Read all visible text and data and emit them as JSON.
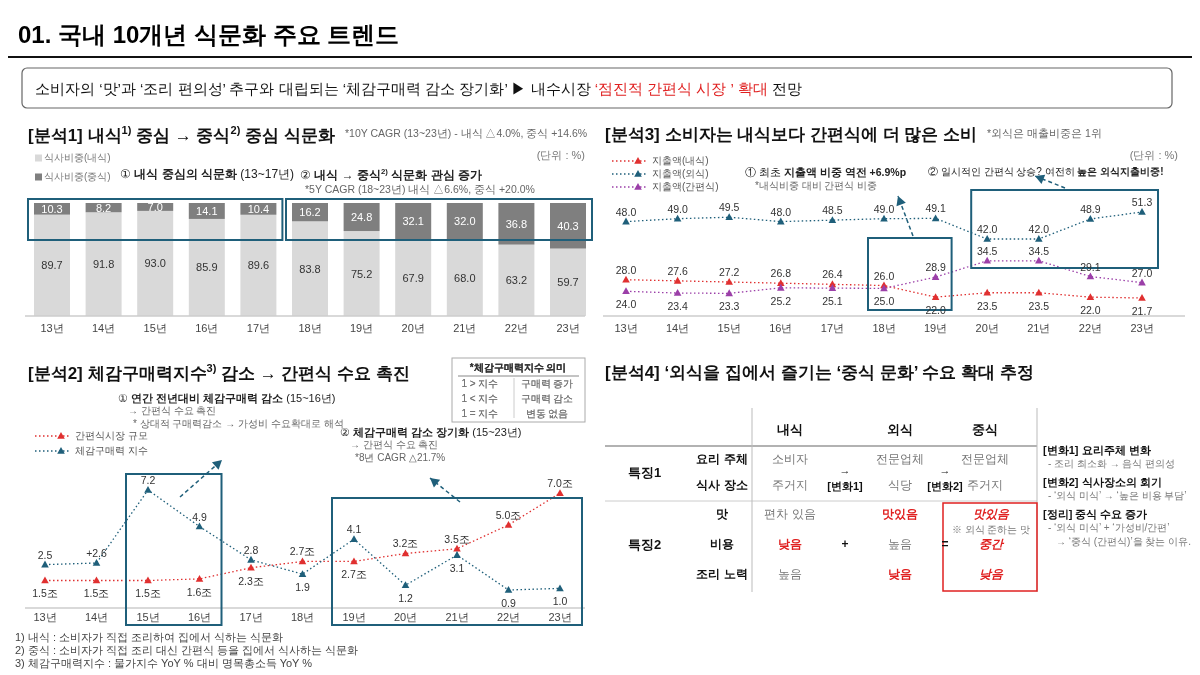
{
  "chart_data": [
    {
      "type": "other",
      "title": "01. 국내 10개년 식문화  주요 트렌드",
      "annotations": [
        "소비자의 ‘맛’과 ‘조리 편의성’ 추구와 대립되는 ‘체감구매력 감소 장기화’  ▶ 내수시장",
        "‘점진적 간편식 시장 ’ 확대",
        "전망",
        "1) 내식  :  소비자가 직접 조리하여 집에서 식하는 식문화",
        "2) 중식  :  소비자가 직접 조리 대신 간편식 등을 집에서 식사하는 식문화",
        "3) 체감구매력지수 : 물가지수 YoY % 대비 명목총소득 YoY %"
      ]
    },
    {
      "type": "bar",
      "stacked": true,
      "title": "[분석1] 내식$^{1)}$ 중심 → 중식$^{2)}$ 중심 식문화",
      "subtitle": "*10Y CAGR (13~23년) - 내식 △4.0%, 중식 +14.6%",
      "categories": [
        "13년",
        "14년",
        "15년",
        "16년",
        "17년",
        "18년",
        "19년",
        "20년",
        "21년",
        "22년",
        "23년"
      ],
      "series": [
        {
          "name": "식사비중(내식)",
          "color": "#d9d9d9",
          "values": [
            89.7,
            91.8,
            93.0,
            85.9,
            89.6,
            83.8,
            75.2,
            67.9,
            68.0,
            63.2,
            59.7
          ],
          "value_labels": [
            "89.7",
            "91.8",
            "93.0",
            "85.9",
            "89.6",
            "83.8",
            "75.2",
            "67.9",
            "68.0",
            "63.2",
            "59.7"
          ]
        },
        {
          "name": "식사비중(중식)",
          "color": "#7f7f7f",
          "values": [
            10.3,
            8.2,
            7.0,
            14.1,
            10.4,
            16.2,
            24.8,
            32.1,
            32.0,
            36.8,
            40.3
          ],
          "value_labels": [
            "10.3",
            "8.2",
            "7.0",
            "14.1",
            "10.4",
            "16.2",
            "24.8",
            "32.1",
            "32.0",
            "36.8",
            "40.3"
          ]
        }
      ],
      "legend": "top left",
      "annotations": [
        "(단위 : %)",
        "① **내식 중심의 식문화** (13~17년)",
        "② **내식 → 중식$^{2)}$ 식문화 관심 증가**",
        "*5Y CAGR (18~23년) 내식 △6.6%, 중식 +20.0%"
      ]
    },
    {
      "type": "line",
      "title": "[분석3] 소비자는 내식보다 간편식에 더 많은 소비",
      "subtitle": "*외식은 매출비중은 1위",
      "categories": [
        "13년",
        "14년",
        "15년",
        "16년",
        "17년",
        "18년",
        "19년",
        "20년",
        "21년",
        "22년",
        "23년"
      ],
      "series": [
        {
          "name": "지출액(내식)",
          "color": "#e03030",
          "values": [
            28.0,
            27.6,
            27.2,
            26.8,
            26.4,
            26.0,
            22.0,
            23.5,
            23.5,
            22.0,
            21.7
          ],
          "value_labels": [
            "28.0",
            "27.6",
            "27.2",
            "26.8",
            "26.4",
            "26.0",
            "22.0",
            "23.5",
            "23.5",
            "22.0",
            "21.7"
          ]
        },
        {
          "name": "지출액(외식)",
          "color": "#1f5f7a",
          "values": [
            48.0,
            49.0,
            49.5,
            48.0,
            48.5,
            49.0,
            49.1,
            42.0,
            42.0,
            48.9,
            51.3
          ],
          "value_labels": [
            "48.0",
            "49.0",
            "49.5",
            "48.0",
            "48.5",
            "49.0",
            "49.1",
            "42.0",
            "42.0",
            "48.9",
            "51.3"
          ]
        },
        {
          "name": "지출액(간편식)",
          "color": "#9b3fa8",
          "values": [
            24.0,
            23.4,
            23.3,
            25.2,
            25.1,
            25.0,
            28.9,
            34.5,
            34.5,
            29.1,
            27.0
          ],
          "value_labels": [
            "24.0",
            "23.4",
            "23.3",
            "25.2",
            "25.1",
            "25.0",
            "28.9",
            "34.5",
            "34.5",
            "29.1",
            "27.0"
          ]
        }
      ],
      "marker": "triangle",
      "line_style": "dotted",
      "legend": "top left",
      "annotations": [
        "(단위 : %)",
        "① 최초 **지출액 비중 역전 +6.9%p**",
        "*내식비중 대비 간편식 비중",
        "② 일시적인 간편식 상승? 여전히 **높은 외식지출비중!**"
      ]
    },
    {
      "type": "line",
      "title": "[분석2] 체감구매력지수$^{3)}$ 감소 → 간편식 수요 촉진",
      "categories": [
        "13년",
        "14년",
        "15년",
        "16년",
        "17년",
        "18년",
        "19년",
        "20년",
        "21년",
        "22년",
        "23년"
      ],
      "series": [
        {
          "name": "간편식시장 규모",
          "color": "#e03030",
          "values": [
            1.5,
            1.5,
            1.5,
            1.6,
            2.3,
            2.7,
            2.7,
            3.2,
            3.5,
            5.0,
            7.0
          ],
          "value_labels": [
            "1.5조",
            "1.5조",
            "1.5조",
            "1.6조",
            "2.3조",
            "2.7조",
            "2.7조",
            "3.2조",
            "3.5조",
            "5.0조",
            "7.0조"
          ]
        },
        {
          "name": "체감구매력 지수",
          "color": "#1f5f7a",
          "values": [
            2.5,
            2.6,
            7.2,
            4.9,
            2.8,
            1.9,
            4.1,
            1.2,
            3.1,
            0.9,
            1.0
          ],
          "value_labels": [
            "2.5",
            "+2.6",
            "7.2",
            "4.9",
            "2.8",
            "1.9",
            "4.1",
            "1.2",
            "3.1",
            "0.9",
            "1.0"
          ]
        }
      ],
      "marker": "triangle",
      "line_style": "dotted",
      "legend": "top left",
      "annotations": [
        "① **연간 전년대비 체감구매력 감소** (15~16년)",
        "→ 간편식 수요 촉진",
        "* 상대적 구매력감소 → 가성비 수요확대로 해석",
        "② **체감구매력 감소 장기화** (15~23년)",
        "→ 간편식 수요 촉진",
        "*8년 CAGR △21.7%",
        "*체감구매력지수 의미",
        "1 > 지수",
        "구매력 증가",
        "1 < 지수",
        "구매력 감소",
        "1 = 지수",
        "변동 없음"
      ]
    },
    {
      "type": "other",
      "title": "[분석4] ‘외식을 집에서 즐기는 ‘중식 문화’ 수요 확대 추정",
      "categories": [
        "내식",
        "외식",
        "중식"
      ],
      "annotations": [
        "특징1",
        "요리 주체",
        "식사 장소",
        "소비자",
        "전문업체",
        "전문업체",
        "주거지",
        "식당",
        "주거지",
        "→",
        "[변화1]",
        "→",
        "[변화2]",
        "특징2",
        "맛",
        "비용",
        "조리 노력",
        "편차 있음",
        "맛있음",
        "맛있음",
        "※ 외식 준하는 맛",
        "낮음",
        "+",
        "높음",
        "=",
        "중간",
        "높음",
        "낮음",
        "낮음",
        "[변화1] 요리주체 변화",
        "- 조리 최소화 →  음식 편의성",
        "[변화2] 식사장소의 회기",
        "- ‘외식 미식’ → ‘높은 비용 부담’",
        "[정리] 중식 수요 증가",
        "- ‘외식 미식’ + ‘가성비/간편’",
        "→ ‘중식 (간편식)’을 찾는 이유."
      ]
    }
  ]
}
